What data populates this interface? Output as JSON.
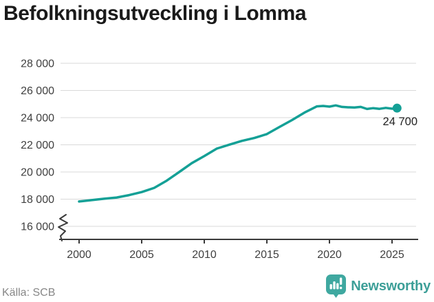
{
  "title": {
    "text": "Befolkningsutveckling i Lomma"
  },
  "footer": {
    "source": "Källa: SCB",
    "brand": "Newsworthy",
    "brand_icon": "newsworthy-bar-chart-bubble"
  },
  "colors": {
    "line": "#14a096",
    "grid": "#d9d9d9",
    "axis": "#3a3a3a",
    "tick_text": "#3f3f3f",
    "title_text": "#1a1a1a",
    "source_text": "#878787",
    "end_label_text": "#222222",
    "brand_text": "#3d9f98",
    "brand_icon": "#3fa8a0"
  },
  "chart_data": {
    "type": "line",
    "title": "Befolkningsutveckling i Lomma",
    "xlabel": "",
    "ylabel": "",
    "grid": "horizontal",
    "legend": "none",
    "axis_break_bottom": true,
    "x_range": [
      2000,
      2025.4
    ],
    "ylim": [
      16000,
      28000
    ],
    "x_ticks": [
      2000,
      2005,
      2010,
      2015,
      2020,
      2025
    ],
    "y_ticks": [
      {
        "value": 16000,
        "label": "16 000"
      },
      {
        "value": 18000,
        "label": "18 000"
      },
      {
        "value": 20000,
        "label": "20 000"
      },
      {
        "value": 22000,
        "label": "22 000"
      },
      {
        "value": 24000,
        "label": "24 000"
      },
      {
        "value": 26000,
        "label": "26 000"
      },
      {
        "value": 28000,
        "label": "28 000"
      }
    ],
    "series": [
      {
        "name": "Befolkning",
        "x": [
          2000,
          2001,
          2002,
          2003,
          2004,
          2005,
          2006,
          2007,
          2008,
          2009,
          2010,
          2011,
          2012,
          2013,
          2014,
          2015,
          2016,
          2017,
          2018,
          2019,
          2019.5,
          2020,
          2020.5,
          2021,
          2021.5,
          2022,
          2022.5,
          2023,
          2023.5,
          2024,
          2024.5,
          2025,
          2025.4
        ],
        "values": [
          17830,
          17930,
          18030,
          18120,
          18300,
          18520,
          18830,
          19360,
          20000,
          20650,
          21170,
          21720,
          22010,
          22290,
          22500,
          22790,
          23310,
          23820,
          24370,
          24830,
          24860,
          24810,
          24900,
          24790,
          24760,
          24750,
          24790,
          24640,
          24700,
          24650,
          24720,
          24660,
          24700
        ]
      }
    ],
    "end_point": {
      "x": 2025.4,
      "value": 24700,
      "label": "24 700"
    }
  }
}
